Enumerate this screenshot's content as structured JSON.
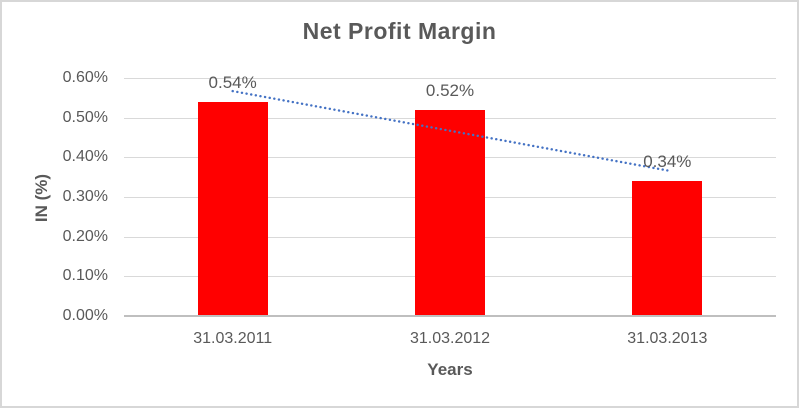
{
  "chart_data": {
    "type": "bar",
    "title": "Net Profit Margin",
    "xlabel": "Years",
    "ylabel": "IN (%)",
    "categories": [
      "31.03.2011",
      "31.03.2012",
      "31.03.2013"
    ],
    "values": [
      0.54,
      0.52,
      0.34
    ],
    "data_labels": [
      "0.54%",
      "0.52%",
      "0.34%"
    ],
    "ytick_values": [
      0.0,
      0.1,
      0.2,
      0.3,
      0.4,
      0.5,
      0.6
    ],
    "ytick_labels": [
      "0.00%",
      "0.10%",
      "0.20%",
      "0.30%",
      "0.40%",
      "0.50%",
      "0.60%"
    ],
    "ylim": [
      0,
      0.6
    ],
    "unit": "%",
    "grid": true,
    "legend": "none",
    "bar_color": "#FF0000",
    "trendline": {
      "type": "linear",
      "style": "dotted",
      "color": "#4472C4",
      "endpoint_values": [
        0.567,
        0.367
      ]
    }
  },
  "style": {
    "title_color": "#595959",
    "axis_text_color": "#595959",
    "gridline_color": "#D9D9D9",
    "axis_line_color": "#BFBFBF",
    "frame_border_color": "#D7D7D7",
    "background": "#FFFFFF"
  }
}
